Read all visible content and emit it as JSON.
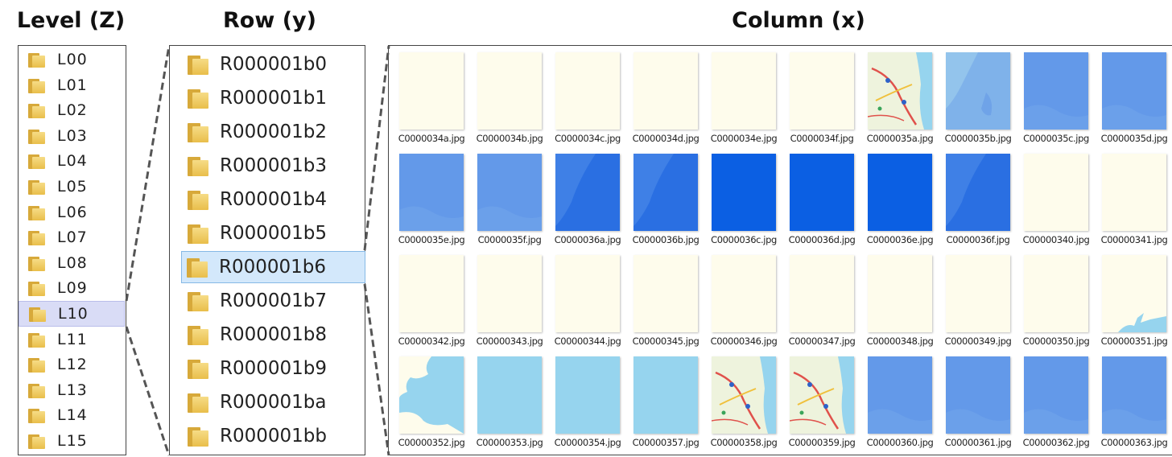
{
  "headings": {
    "level": "Level (Z)",
    "row": "Row (y)",
    "column": "Column (x)"
  },
  "levels": {
    "items": [
      "L00",
      "L01",
      "L02",
      "L03",
      "L04",
      "L05",
      "L06",
      "L07",
      "L08",
      "L09",
      "L10",
      "L11",
      "L12",
      "L13",
      "L14",
      "L15"
    ],
    "selected": "L10"
  },
  "rows": {
    "items": [
      "R000001b0",
      "R000001b1",
      "R000001b2",
      "R000001b3",
      "R000001b4",
      "R000001b5",
      "R000001b6",
      "R000001b7",
      "R000001b8",
      "R000001b9",
      "R000001ba",
      "R000001bb"
    ],
    "selected": "R000001b6"
  },
  "tiles": [
    {
      "name": "C0000034a.jpg",
      "kind": "land"
    },
    {
      "name": "C0000034b.jpg",
      "kind": "land"
    },
    {
      "name": "C0000034c.jpg",
      "kind": "land"
    },
    {
      "name": "C0000034d.jpg",
      "kind": "land"
    },
    {
      "name": "C0000034e.jpg",
      "kind": "land"
    },
    {
      "name": "C0000034f.jpg",
      "kind": "land"
    },
    {
      "name": "C0000035a.jpg",
      "kind": "map"
    },
    {
      "name": "C0000035b.jpg",
      "kind": "sea-light"
    },
    {
      "name": "C0000035c.jpg",
      "kind": "sea-mid"
    },
    {
      "name": "C0000035d.jpg",
      "kind": "sea-mid"
    },
    {
      "name": "C0000035e.jpg",
      "kind": "sea-mid"
    },
    {
      "name": "C0000035f.jpg",
      "kind": "sea-mid"
    },
    {
      "name": "C0000036a.jpg",
      "kind": "sea-deep"
    },
    {
      "name": "C0000036b.jpg",
      "kind": "sea-deep"
    },
    {
      "name": "C0000036c.jpg",
      "kind": "sea-darkest"
    },
    {
      "name": "C0000036d.jpg",
      "kind": "sea-darkest"
    },
    {
      "name": "C0000036e.jpg",
      "kind": "sea-darkest"
    },
    {
      "name": "C0000036f.jpg",
      "kind": "sea-deep"
    },
    {
      "name": "C00000340.jpg",
      "kind": "land"
    },
    {
      "name": "C00000341.jpg",
      "kind": "land"
    },
    {
      "name": "C00000342.jpg",
      "kind": "land"
    },
    {
      "name": "C00000343.jpg",
      "kind": "land"
    },
    {
      "name": "C00000344.jpg",
      "kind": "land"
    },
    {
      "name": "C00000345.jpg",
      "kind": "land"
    },
    {
      "name": "C00000346.jpg",
      "kind": "land"
    },
    {
      "name": "C00000347.jpg",
      "kind": "land"
    },
    {
      "name": "C00000348.jpg",
      "kind": "land"
    },
    {
      "name": "C00000349.jpg",
      "kind": "land"
    },
    {
      "name": "C00000350.jpg",
      "kind": "land"
    },
    {
      "name": "C00000351.jpg",
      "kind": "land-coast"
    },
    {
      "name": "C00000352.jpg",
      "kind": "coast"
    },
    {
      "name": "C00000353.jpg",
      "kind": "sea-pale"
    },
    {
      "name": "C00000354.jpg",
      "kind": "sea-pale"
    },
    {
      "name": "C00000357.jpg",
      "kind": "sea-pale"
    },
    {
      "name": "C00000358.jpg",
      "kind": "map"
    },
    {
      "name": "C00000359.jpg",
      "kind": "map"
    },
    {
      "name": "C00000360.jpg",
      "kind": "sea-mid"
    },
    {
      "name": "C00000361.jpg",
      "kind": "sea-mid"
    },
    {
      "name": "C00000362.jpg",
      "kind": "sea-mid"
    },
    {
      "name": "C00000363.jpg",
      "kind": "sea-mid"
    }
  ],
  "colors": {
    "land": "#fefcec",
    "sea-pale": "#96d4ee",
    "sea-light": "#7fb2ea",
    "sea-mid": "#6399e9",
    "sea-deep": "#2a6fe2",
    "sea-darkest": "#0b5fe3",
    "selection-level": "#d9dcf6",
    "selection-row": "#d3e8fb",
    "connector": "#555555"
  }
}
